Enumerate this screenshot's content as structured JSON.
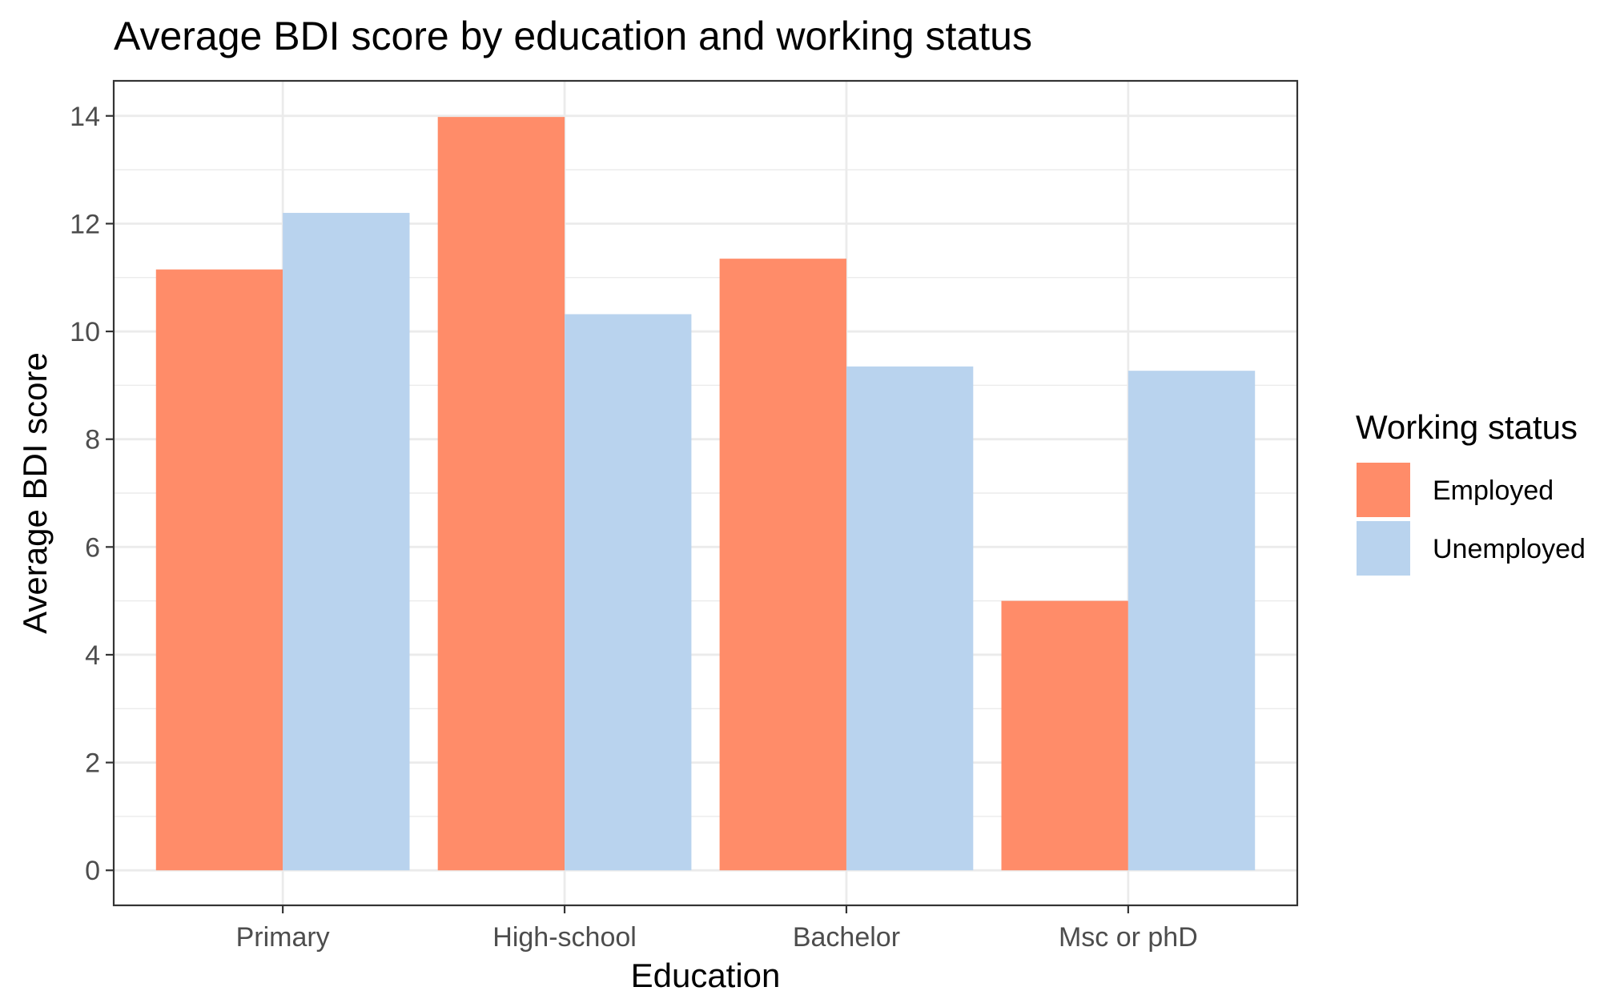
{
  "chart_data": {
    "type": "bar",
    "title": "Average BDI score by education and working status",
    "xlabel": "Education",
    "ylabel": "Average BDI score",
    "categories": [
      "Primary",
      "High-school",
      "Bachelor",
      "Msc or phD"
    ],
    "series": [
      {
        "name": "Employed",
        "color": "#FF8C69",
        "values": [
          11.15,
          13.98,
          11.35,
          5.0
        ]
      },
      {
        "name": "Unemployed",
        "color": "#B9D3EE",
        "values": [
          12.2,
          10.32,
          9.35,
          9.27
        ]
      }
    ],
    "ylim": [
      -0.65,
      14.65
    ],
    "yticks": [
      0,
      2,
      4,
      6,
      8,
      10,
      12,
      14
    ],
    "grid": true,
    "legend": {
      "title": "Working status",
      "position": "right"
    },
    "theme": {
      "grid_color": "#EBEBEB",
      "border_color": "#333333",
      "tick_label_color": "#4D4D4D"
    }
  }
}
